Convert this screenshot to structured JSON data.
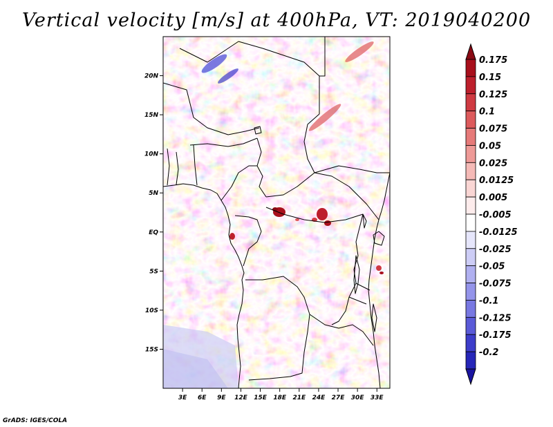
{
  "title": "Vertical velocity [m/s] at 400hPa, VT: 2019040200",
  "credit": "GrADS: IGES/COLA",
  "map": {
    "variable": "Vertical velocity",
    "units": "m/s",
    "level": "400hPa",
    "valid_time": "2019040200",
    "lat_range": [
      -20,
      25
    ],
    "lon_range": [
      0,
      35
    ]
  },
  "axes": {
    "lat_ticks": [
      {
        "value": 20,
        "label": "20N"
      },
      {
        "value": 15,
        "label": "15N"
      },
      {
        "value": 10,
        "label": "10N"
      },
      {
        "value": 5,
        "label": "5N"
      },
      {
        "value": 0,
        "label": "EQ"
      },
      {
        "value": -5,
        "label": "5S"
      },
      {
        "value": -10,
        "label": "10S"
      },
      {
        "value": -15,
        "label": "15S"
      }
    ],
    "lon_ticks": [
      {
        "value": 3,
        "label": "3E"
      },
      {
        "value": 6,
        "label": "6E"
      },
      {
        "value": 9,
        "label": "9E"
      },
      {
        "value": 12,
        "label": "12E"
      },
      {
        "value": 15,
        "label": "15E"
      },
      {
        "value": 18,
        "label": "18E"
      },
      {
        "value": 21,
        "label": "21E"
      },
      {
        "value": 24,
        "label": "24E"
      },
      {
        "value": 27,
        "label": "27E"
      },
      {
        "value": 30,
        "label": "30E"
      },
      {
        "value": 33,
        "label": "33E"
      }
    ]
  },
  "colorbar": {
    "levels": [
      {
        "label": "0.175",
        "color": "#a80f1c"
      },
      {
        "label": "0.15",
        "color": "#bd1f2c"
      },
      {
        "label": "0.125",
        "color": "#cf3a42"
      },
      {
        "label": "0.1",
        "color": "#dd5a5c"
      },
      {
        "label": "0.075",
        "color": "#e67a79"
      },
      {
        "label": "0.05",
        "color": "#ee9a97"
      },
      {
        "label": "0.025",
        "color": "#f5bab7"
      },
      {
        "label": "0.0125",
        "color": "#fad6d4"
      },
      {
        "label": "0.005",
        "color": "#fdecec"
      },
      {
        "label": "-0.005",
        "color": "#ffffff"
      },
      {
        "label": "-0.0125",
        "color": "#e6e6fb"
      },
      {
        "label": "-0.025",
        "color": "#cdcdf6"
      },
      {
        "label": "-0.05",
        "color": "#b0b0f0"
      },
      {
        "label": "-0.075",
        "color": "#9494ea"
      },
      {
        "label": "-0.1",
        "color": "#7878e2"
      },
      {
        "label": "-0.125",
        "color": "#5a5ad8"
      },
      {
        "label": "-0.175",
        "color": "#3d3dca"
      },
      {
        "label": "-0.2",
        "color": "#2626b8"
      }
    ],
    "over_color": "#8a0a14",
    "under_color": "#1a14a0"
  }
}
